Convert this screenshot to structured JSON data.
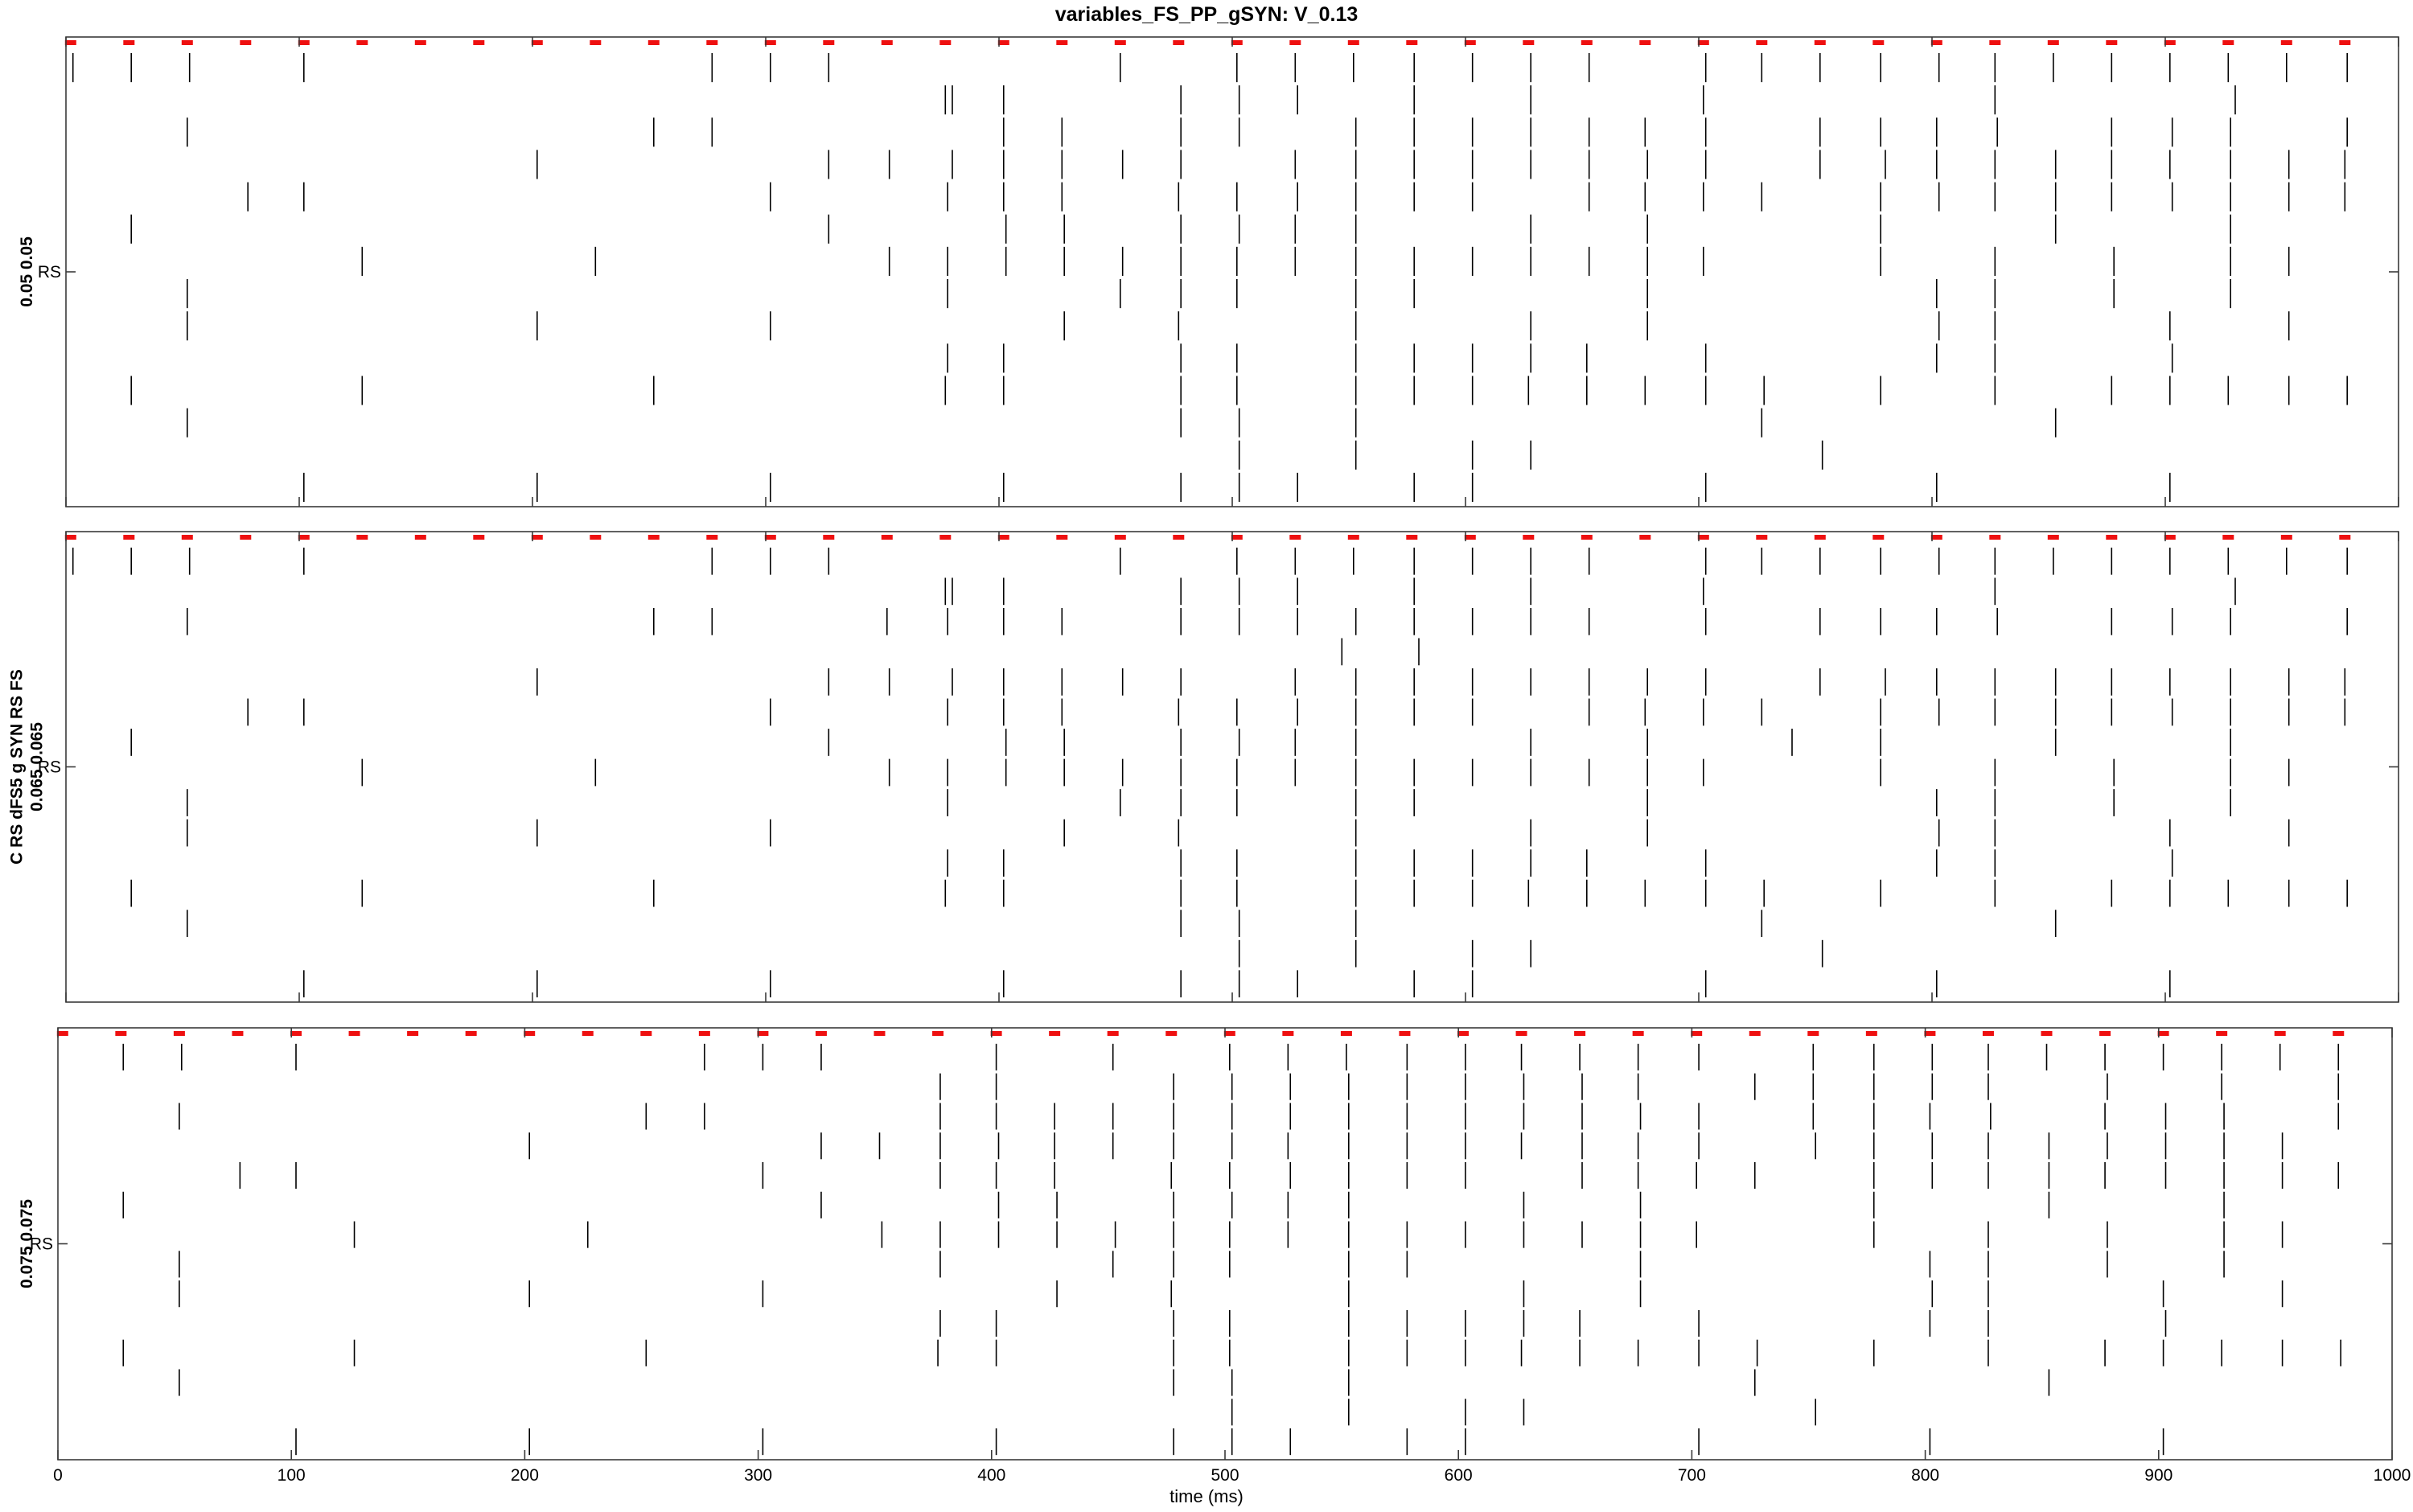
{
  "chart_data": {
    "type": "scatter",
    "title": "variables_FS_PP_gSYN: V_0.13",
    "xlabel": "time (ms)",
    "xlim": [
      0,
      1000
    ],
    "xticks": [
      0,
      100,
      200,
      300,
      400,
      500,
      600,
      700,
      800,
      900,
      1000
    ],
    "reference_marks": [
      2,
      27,
      52,
      77,
      102,
      127,
      152,
      177,
      202,
      227,
      252,
      277,
      302,
      327,
      352,
      377,
      402,
      427,
      452,
      477,
      502,
      527,
      552,
      577,
      602,
      627,
      652,
      677,
      702,
      727,
      752,
      777,
      802,
      827,
      852,
      877,
      902,
      927,
      952,
      977
    ],
    "panels": [
      {
        "ylabel_lines": [
          "0.05 0.05"
        ],
        "ytick_label": "RS",
        "rows": [
          [
            3,
            28,
            53,
            102,
            277,
            302,
            327,
            452,
            502,
            527,
            552,
            578,
            603,
            628,
            653,
            703,
            727,
            752,
            778,
            803,
            827,
            852,
            877,
            902,
            927,
            952,
            978
          ],
          [
            377,
            380,
            402,
            478,
            503,
            528,
            578,
            628,
            702,
            827,
            930
          ],
          [
            52,
            252,
            277,
            402,
            427,
            478,
            503,
            553,
            578,
            603,
            628,
            653,
            677,
            703,
            752,
            778,
            802,
            828,
            877,
            903,
            928,
            978
          ],
          [
            202,
            327,
            353,
            380,
            402,
            427,
            453,
            478,
            527,
            553,
            578,
            603,
            628,
            653,
            678,
            703,
            752,
            780,
            802,
            827,
            853,
            877,
            902,
            928,
            953,
            977
          ],
          [
            78,
            102,
            302,
            378,
            402,
            427,
            477,
            502,
            528,
            553,
            578,
            603,
            653,
            677,
            702,
            727,
            778,
            803,
            827,
            853,
            877,
            903,
            928,
            953,
            977
          ],
          [
            28,
            327,
            403,
            428,
            478,
            503,
            527,
            553,
            628,
            678,
            778,
            853,
            928
          ],
          [
            127,
            227,
            353,
            378,
            403,
            428,
            453,
            478,
            502,
            527,
            553,
            578,
            603,
            628,
            653,
            678,
            702,
            778,
            827,
            878,
            928,
            953
          ],
          [
            52,
            378,
            452,
            478,
            502,
            553,
            578,
            678,
            802,
            827,
            878,
            928
          ],
          [
            52,
            202,
            302,
            428,
            477,
            553,
            628,
            678,
            803,
            827,
            902,
            953
          ],
          [
            378,
            402,
            478,
            502,
            553,
            578,
            603,
            628,
            652,
            703,
            802,
            827,
            903
          ],
          [
            28,
            127,
            252,
            377,
            402,
            478,
            502,
            553,
            578,
            603,
            627,
            652,
            677,
            703,
            728,
            778,
            827,
            877,
            902,
            927,
            953,
            978
          ],
          [
            52,
            478,
            503,
            553,
            727,
            853
          ],
          [
            503,
            553,
            603,
            628,
            753
          ],
          [
            102,
            202,
            302,
            402,
            478,
            503,
            528,
            578,
            603,
            703,
            802,
            902
          ]
        ]
      },
      {
        "ylabel_lines": [
          "C RS dFS5 g SYN RS FS",
          "0.065 0.065"
        ],
        "ytick_label": "RS",
        "rows": [
          [
            3,
            28,
            53,
            102,
            277,
            302,
            327,
            452,
            502,
            527,
            552,
            578,
            603,
            628,
            653,
            703,
            727,
            752,
            778,
            803,
            827,
            852,
            877,
            902,
            927,
            952,
            978
          ],
          [
            377,
            380,
            402,
            478,
            503,
            528,
            578,
            628,
            702,
            827,
            930
          ],
          [
            52,
            252,
            277,
            352,
            378,
            402,
            427,
            478,
            503,
            528,
            553,
            578,
            603,
            628,
            653,
            703,
            752,
            778,
            802,
            828,
            877,
            903,
            928,
            978
          ],
          [
            547,
            580
          ],
          [
            202,
            327,
            353,
            380,
            402,
            427,
            453,
            478,
            527,
            553,
            578,
            603,
            628,
            653,
            678,
            703,
            752,
            780,
            802,
            827,
            853,
            877,
            902,
            928,
            953,
            977
          ],
          [
            78,
            102,
            302,
            378,
            402,
            427,
            477,
            502,
            528,
            553,
            578,
            603,
            653,
            677,
            702,
            727,
            778,
            803,
            827,
            853,
            877,
            903,
            928,
            953,
            977
          ],
          [
            28,
            327,
            403,
            428,
            478,
            503,
            527,
            553,
            628,
            678,
            740,
            778,
            853,
            928
          ],
          [
            127,
            227,
            353,
            378,
            403,
            428,
            453,
            478,
            502,
            527,
            553,
            578,
            603,
            628,
            653,
            678,
            702,
            778,
            827,
            878,
            928,
            953
          ],
          [
            52,
            378,
            452,
            478,
            502,
            553,
            578,
            678,
            802,
            827,
            878,
            928
          ],
          [
            52,
            202,
            302,
            428,
            477,
            553,
            628,
            678,
            803,
            827,
            902,
            953
          ],
          [
            378,
            402,
            478,
            502,
            553,
            578,
            603,
            628,
            652,
            703,
            802,
            827,
            903
          ],
          [
            28,
            127,
            252,
            377,
            402,
            478,
            502,
            553,
            578,
            603,
            627,
            652,
            677,
            703,
            728,
            778,
            827,
            877,
            902,
            927,
            953,
            978
          ],
          [
            52,
            478,
            503,
            553,
            727,
            853
          ],
          [
            503,
            553,
            603,
            628,
            753
          ],
          [
            102,
            202,
            302,
            402,
            478,
            503,
            528,
            578,
            603,
            703,
            802,
            902
          ]
        ]
      },
      {
        "ylabel_lines": [
          "0.075 0.075"
        ],
        "ytick_label": "RS",
        "rows": [
          [
            28,
            53,
            102,
            277,
            302,
            327,
            402,
            452,
            502,
            527,
            552,
            578,
            603,
            627,
            652,
            677,
            703,
            752,
            778,
            803,
            827,
            852,
            877,
            902,
            927,
            952,
            977
          ],
          [
            378,
            402,
            478,
            503,
            528,
            553,
            578,
            603,
            628,
            653,
            677,
            727,
            752,
            778,
            803,
            827,
            878,
            927,
            977
          ],
          [
            52,
            252,
            277,
            378,
            402,
            427,
            452,
            478,
            503,
            528,
            553,
            578,
            603,
            628,
            653,
            678,
            703,
            752,
            778,
            802,
            828,
            877,
            903,
            928,
            977
          ],
          [
            202,
            327,
            352,
            378,
            403,
            427,
            452,
            478,
            503,
            527,
            553,
            578,
            603,
            627,
            653,
            677,
            703,
            753,
            778,
            803,
            827,
            853,
            878,
            903,
            928,
            953
          ],
          [
            78,
            102,
            302,
            378,
            402,
            427,
            477,
            502,
            528,
            553,
            578,
            603,
            653,
            677,
            702,
            727,
            778,
            803,
            827,
            853,
            877,
            903,
            928,
            953,
            977
          ],
          [
            28,
            327,
            403,
            428,
            478,
            503,
            527,
            553,
            628,
            678,
            778,
            853,
            928
          ],
          [
            127,
            227,
            353,
            378,
            403,
            428,
            453,
            478,
            502,
            527,
            553,
            578,
            603,
            628,
            653,
            678,
            702,
            778,
            827,
            878,
            928,
            953
          ],
          [
            52,
            378,
            452,
            478,
            502,
            553,
            578,
            678,
            802,
            827,
            878,
            928
          ],
          [
            52,
            202,
            302,
            428,
            477,
            553,
            628,
            678,
            803,
            827,
            902,
            953
          ],
          [
            378,
            402,
            478,
            502,
            553,
            578,
            603,
            628,
            652,
            703,
            802,
            827,
            903
          ],
          [
            28,
            127,
            252,
            377,
            402,
            478,
            502,
            553,
            578,
            603,
            627,
            652,
            677,
            703,
            728,
            778,
            827,
            877,
            902,
            927,
            953,
            978
          ],
          [
            52,
            478,
            503,
            553,
            727,
            853
          ],
          [
            503,
            553,
            603,
            628,
            753
          ],
          [
            102,
            202,
            302,
            402,
            478,
            503,
            528,
            578,
            603,
            703,
            802,
            902
          ]
        ]
      }
    ]
  }
}
